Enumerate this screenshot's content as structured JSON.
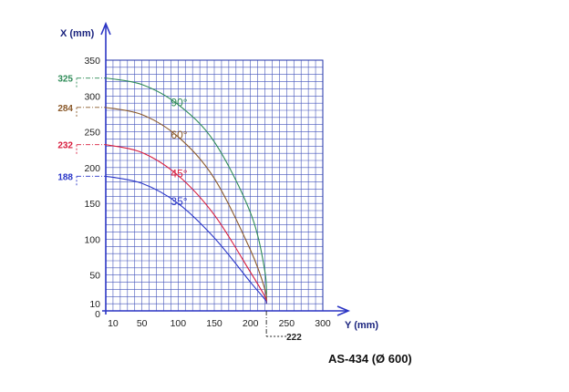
{
  "chart_data": {
    "type": "line",
    "xlabel": "Y (mm)",
    "ylabel": "X (mm)",
    "xlim": [
      0,
      300
    ],
    "ylim": [
      0,
      350
    ],
    "x_ticks": [
      10,
      50,
      100,
      150,
      200,
      250,
      300
    ],
    "y_ticks": [
      0,
      10,
      50,
      100,
      150,
      200,
      250,
      300,
      350
    ],
    "grid": true,
    "series": [
      {
        "name": "90°",
        "color": "#2e8b57",
        "x": [
          0,
          50,
          100,
          150,
          200,
          220,
          222
        ],
        "y": [
          325,
          316,
          288,
          236,
          137,
          55,
          10
        ]
      },
      {
        "name": "60°",
        "color": "#8b5a2b",
        "x": [
          0,
          50,
          100,
          150,
          200,
          220,
          222
        ],
        "y": [
          284,
          274,
          243,
          185,
          85,
          30,
          10
        ]
      },
      {
        "name": "45°",
        "color": "#d81b3c",
        "x": [
          0,
          50,
          100,
          150,
          200,
          220,
          222
        ],
        "y": [
          232,
          221,
          189,
          134,
          54,
          20,
          10
        ]
      },
      {
        "name": "35°",
        "color": "#2a36c8",
        "x": [
          0,
          50,
          100,
          150,
          200,
          220,
          222
        ],
        "y": [
          188,
          178,
          150,
          102,
          40,
          16,
          10
        ]
      }
    ],
    "annotations": {
      "y_marks": [
        {
          "value": 325,
          "color": "#2e8b57"
        },
        {
          "value": 284,
          "color": "#8b5a2b"
        },
        {
          "value": 232,
          "color": "#d81b3c"
        },
        {
          "value": 188,
          "color": "#2a36c8"
        }
      ],
      "x_mark": {
        "value": 222,
        "color": "#222222"
      }
    }
  },
  "caption": "AS-434 (Ø 600)"
}
